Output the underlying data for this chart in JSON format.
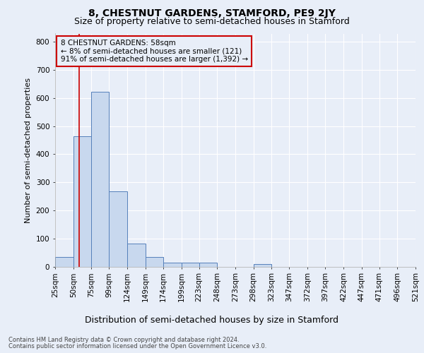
{
  "title": "8, CHESTNUT GARDENS, STAMFORD, PE9 2JY",
  "subtitle": "Size of property relative to semi-detached houses in Stamford",
  "xlabel": "Distribution of semi-detached houses by size in Stamford",
  "ylabel": "Number of semi-detached properties",
  "footnote1": "Contains HM Land Registry data © Crown copyright and database right 2024.",
  "footnote2": "Contains public sector information licensed under the Open Government Licence v3.0.",
  "annotation_line1": "8 CHESTNUT GARDENS: 58sqm",
  "annotation_line2": "← 8% of semi-detached houses are smaller (121)",
  "annotation_line3": "91% of semi-detached houses are larger (1,392) →",
  "bar_left_edges": [
    25,
    50,
    75,
    99,
    124,
    149,
    174,
    199,
    223,
    248,
    273,
    298,
    323,
    347,
    372,
    397,
    422,
    447,
    471,
    496
  ],
  "bar_heights": [
    35,
    465,
    622,
    268,
    83,
    33,
    15,
    15,
    13,
    0,
    0,
    8,
    0,
    0,
    0,
    0,
    0,
    0,
    0,
    0
  ],
  "bar_widths": [
    25,
    25,
    24,
    25,
    25,
    25,
    25,
    24,
    25,
    25,
    25,
    25,
    24,
    25,
    25,
    25,
    25,
    25,
    25,
    25
  ],
  "tick_labels": [
    "25sqm",
    "50sqm",
    "75sqm",
    "99sqm",
    "124sqm",
    "149sqm",
    "174sqm",
    "199sqm",
    "223sqm",
    "248sqm",
    "273sqm",
    "298sqm",
    "323sqm",
    "347sqm",
    "372sqm",
    "397sqm",
    "422sqm",
    "447sqm",
    "471sqm",
    "496sqm",
    "521sqm"
  ],
  "bar_color": "#c8d8ee",
  "bar_edge_color": "#5580bb",
  "property_line_x": 58,
  "ylim": [
    0,
    830
  ],
  "yticks": [
    0,
    100,
    200,
    300,
    400,
    500,
    600,
    700,
    800
  ],
  "bg_color": "#e8eef8",
  "plot_bg_color": "#e8eef8",
  "grid_color": "#ffffff",
  "box_color": "#cc0000",
  "title_fontsize": 10,
  "subtitle_fontsize": 9,
  "xlabel_fontsize": 9,
  "ylabel_fontsize": 8,
  "tick_fontsize": 7.5,
  "annot_fontsize": 7.5,
  "footnote_fontsize": 6
}
